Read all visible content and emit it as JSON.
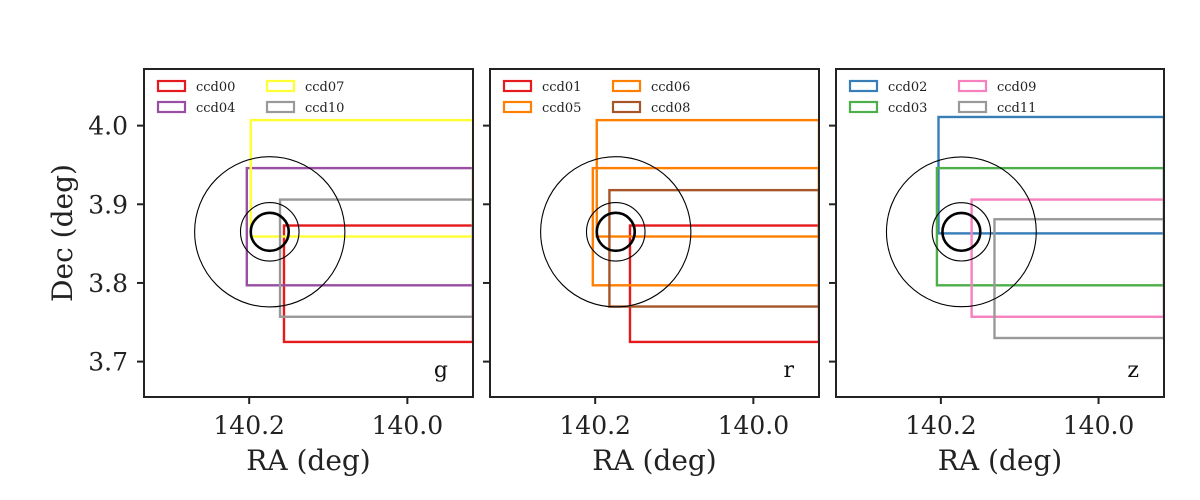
{
  "chart_data": [
    {
      "type": "rectangles",
      "band": "g",
      "xlabel": "RA (deg)",
      "ylabel": "Dec (deg)",
      "xlim": [
        140.333,
        139.917
      ],
      "ylim": [
        3.655,
        4.072
      ],
      "xticks": [
        140.2,
        140.0
      ],
      "xtick_labels": [
        "140.2",
        "140.0"
      ],
      "yticks": [
        4.0,
        3.9,
        3.8,
        3.7
      ],
      "ytick_labels": [
        "4.0",
        "3.9",
        "3.8",
        "3.7"
      ],
      "legend": {
        "location": "top-left",
        "columns": 2
      },
      "center": {
        "ra": 140.174,
        "dec": 3.865
      },
      "circle_radii_deg": [
        0.024,
        0.037,
        0.095
      ],
      "ccds": [
        {
          "name": "ccd00",
          "color": "#e41a1c",
          "ra_min": 139.917,
          "ra_max": 140.156,
          "dec_min": 3.725,
          "dec_max": 3.873
        },
        {
          "name": "ccd04",
          "color": "#984ea3",
          "ra_min": 139.917,
          "ra_max": 140.203,
          "dec_min": 3.797,
          "dec_max": 3.946
        },
        {
          "name": "ccd07",
          "color": "#ffff33",
          "ra_min": 139.917,
          "ra_max": 140.198,
          "dec_min": 3.859,
          "dec_max": 4.007
        },
        {
          "name": "ccd10",
          "color": "#999999",
          "ra_min": 139.917,
          "ra_max": 140.161,
          "dec_min": 3.757,
          "dec_max": 3.906
        }
      ]
    },
    {
      "type": "rectangles",
      "band": "r",
      "xlabel": "RA (deg)",
      "ylabel": "",
      "xlim": [
        140.333,
        139.917
      ],
      "ylim": [
        3.655,
        4.072
      ],
      "xticks": [
        140.2,
        140.0
      ],
      "xtick_labels": [
        "140.2",
        "140.0"
      ],
      "legend": {
        "location": "top-left",
        "columns": 2
      },
      "center": {
        "ra": 140.174,
        "dec": 3.865
      },
      "circle_radii_deg": [
        0.024,
        0.037,
        0.095
      ],
      "ccds": [
        {
          "name": "ccd01",
          "color": "#e41a1c",
          "ra_min": 139.917,
          "ra_max": 140.156,
          "dec_min": 3.725,
          "dec_max": 3.873
        },
        {
          "name": "ccd05",
          "color": "#ff7f00",
          "ra_min": 139.917,
          "ra_max": 140.203,
          "dec_min": 3.797,
          "dec_max": 3.946
        },
        {
          "name": "ccd06",
          "color": "#ff7f00",
          "ra_min": 139.917,
          "ra_max": 140.198,
          "dec_min": 3.859,
          "dec_max": 4.007
        },
        {
          "name": "ccd08",
          "color": "#a65628",
          "ra_min": 139.917,
          "ra_max": 140.182,
          "dec_min": 3.77,
          "dec_max": 3.918
        }
      ]
    },
    {
      "type": "rectangles",
      "band": "z",
      "xlabel": "RA (deg)",
      "ylabel": "",
      "xlim": [
        140.333,
        139.917
      ],
      "ylim": [
        3.655,
        4.072
      ],
      "xticks": [
        140.2,
        140.0
      ],
      "xtick_labels": [
        "140.2",
        "140.0"
      ],
      "legend": {
        "location": "top-left",
        "columns": 2
      },
      "center": {
        "ra": 140.174,
        "dec": 3.865
      },
      "circle_radii_deg": [
        0.024,
        0.037,
        0.095
      ],
      "ccds": [
        {
          "name": "ccd02",
          "color": "#377eb8",
          "ra_min": 139.917,
          "ra_max": 140.203,
          "dec_min": 3.863,
          "dec_max": 4.011
        },
        {
          "name": "ccd03",
          "color": "#4daf4a",
          "ra_min": 139.917,
          "ra_max": 140.205,
          "dec_min": 3.797,
          "dec_max": 3.946
        },
        {
          "name": "ccd09",
          "color": "#f781bf",
          "ra_min": 139.917,
          "ra_max": 140.161,
          "dec_min": 3.757,
          "dec_max": 3.906
        },
        {
          "name": "ccd11",
          "color": "#999999",
          "ra_min": 139.917,
          "ra_max": 140.132,
          "dec_min": 3.73,
          "dec_max": 3.881
        }
      ]
    }
  ]
}
